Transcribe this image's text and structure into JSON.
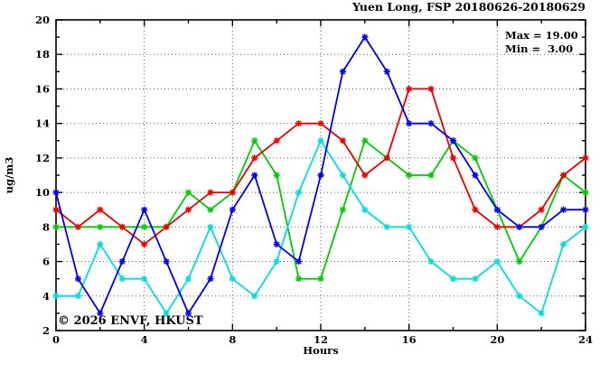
{
  "title": "Yuen Long, FSP 20180626-20180629",
  "legend": {
    "max": "Max = 19.00",
    "min": "Min =  3.00"
  },
  "watermark": "© 2026 ENVF, HKUST",
  "colors": {
    "axis": "#000000",
    "grid": "#606060",
    "watermark": "#c6c6c6",
    "background": "#ffffff"
  },
  "chart_data": {
    "type": "line",
    "title": "Yuen Long, FSP 20180626-20180629",
    "xlabel": "Hours",
    "ylabel": "ug/m3",
    "xlim": [
      0,
      24
    ],
    "ylim": [
      2,
      20
    ],
    "grid": true,
    "legend_position": "top-right-inside",
    "annotations": {
      "max": "Max = 19.00",
      "min": "Min =  3.00"
    },
    "x_major_ticks": [
      0,
      4,
      8,
      12,
      16,
      20,
      24
    ],
    "x_minor_ticks": [
      2,
      6,
      10,
      14,
      18,
      22
    ],
    "y_major_ticks": [
      2,
      4,
      6,
      8,
      10,
      12,
      14,
      16,
      18,
      20
    ],
    "y_minor_ticks": [
      3,
      5,
      7,
      9,
      11,
      13,
      15,
      17,
      19
    ],
    "x_gridlines": [
      4,
      8,
      12,
      16,
      20
    ],
    "y_gridlines": [
      4,
      6,
      8,
      10,
      12,
      14,
      16,
      18
    ],
    "x": [
      0,
      1,
      2,
      3,
      4,
      5,
      6,
      7,
      8,
      9,
      10,
      11,
      12,
      13,
      14,
      15,
      16,
      17,
      18,
      19,
      20,
      21,
      22,
      23,
      24
    ],
    "series": [
      {
        "name": "green-line",
        "color": "#00cc00",
        "values": [
          8,
          8,
          8,
          8,
          8,
          8,
          10,
          9,
          10,
          13,
          11,
          5,
          5,
          9,
          13,
          12,
          11,
          11,
          13,
          12,
          9,
          6,
          8,
          11,
          10
        ]
      },
      {
        "name": "cyan-line",
        "color": "#00dede",
        "values": [
          4,
          4,
          7,
          5,
          5,
          3,
          5,
          8,
          5,
          4,
          6,
          10,
          13,
          11,
          9,
          8,
          8,
          6,
          5,
          5,
          6,
          4,
          3,
          7,
          8
        ]
      },
      {
        "name": "red-line",
        "color": "#ee0000",
        "values": [
          9,
          8,
          9,
          8,
          7,
          8,
          9,
          10,
          10,
          12,
          13,
          14,
          14,
          13,
          11,
          12,
          16,
          16,
          12,
          9,
          8,
          8,
          9,
          11,
          12
        ]
      },
      {
        "name": "blue-line",
        "color": "#0000ee",
        "values": [
          10,
          5,
          3,
          6,
          9,
          6,
          3,
          5,
          9,
          11,
          7,
          6,
          11,
          17,
          19,
          17,
          14,
          14,
          13,
          11,
          9,
          8,
          8,
          9,
          9
        ]
      }
    ]
  }
}
